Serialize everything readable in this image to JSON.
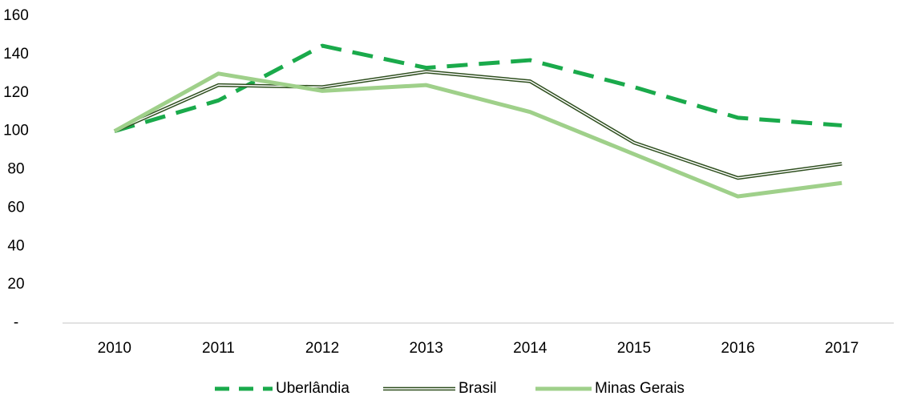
{
  "chart_data": {
    "type": "line",
    "categories": [
      "2010",
      "2011",
      "2012",
      "2013",
      "2014",
      "2015",
      "2016",
      "2017"
    ],
    "series": [
      {
        "name": "Uberlândia",
        "color": "#1aaa4b",
        "style": "dashed",
        "values": [
          100,
          116,
          144.5,
          133,
          137,
          123,
          107,
          103
        ]
      },
      {
        "name": "Brasil",
        "color": "#2f4f1f",
        "style": "double",
        "values": [
          100,
          124,
          123,
          131,
          126,
          94,
          75.6,
          83
        ]
      },
      {
        "name": "Minas Gerais",
        "color": "#9fd08a",
        "style": "solid",
        "values": [
          100,
          130,
          121,
          124,
          110,
          88,
          66,
          73
        ]
      }
    ],
    "ylim": [
      0,
      160
    ],
    "yticks": [
      {
        "value": 0,
        "label": "-"
      },
      20,
      40,
      60,
      80,
      100,
      120,
      140,
      160
    ],
    "legend": "bottom"
  }
}
